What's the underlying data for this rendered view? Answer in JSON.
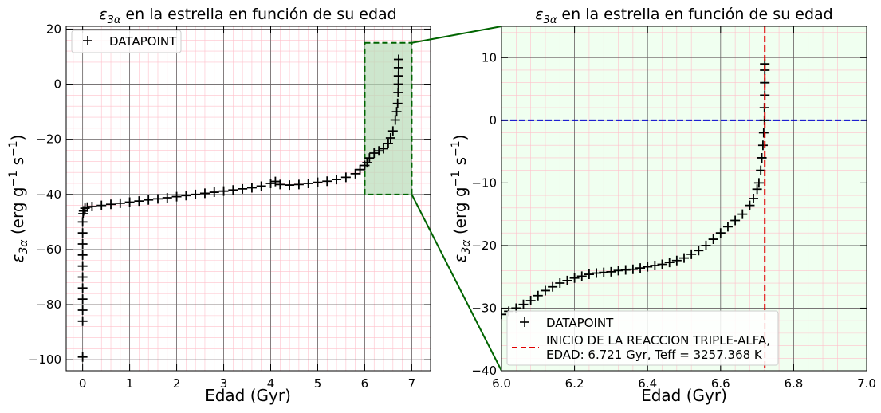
{
  "chart_data": [
    {
      "type": "scatter",
      "title_prefix": "ε",
      "title_sub": "3α",
      "title_rest": " en la estrella en función de su edad",
      "xlabel": "Edad (Gyr)",
      "ylabel_prefix": "ε",
      "ylabel_sub": "3α",
      "ylabel_rest": " (erg g",
      "ylabel_sup1": "−1",
      "ylabel_mid": " s",
      "ylabel_sup2": "−1",
      "ylabel_end": ")",
      "xlim": [
        -0.35,
        7.4
      ],
      "ylim": [
        -104,
        21
      ],
      "xticks": [
        0,
        1,
        2,
        3,
        4,
        5,
        6,
        7
      ],
      "xtick_labels": [
        "0",
        "1",
        "2",
        "3",
        "4",
        "5",
        "6",
        "7"
      ],
      "yticks": [
        -100,
        -80,
        -60,
        -40,
        -20,
        0,
        20
      ],
      "ytick_labels": [
        "−100",
        "−80",
        "−60",
        "−40",
        "−20",
        "0",
        "20"
      ],
      "grid": true,
      "legend": {
        "placement": "top-left",
        "entries": [
          "DATAPOINT"
        ]
      },
      "zoom_box": {
        "x": [
          6.0,
          7.0
        ],
        "y": [
          -40,
          15
        ],
        "color": "#006400"
      },
      "series": [
        {
          "name": "DATAPOINT",
          "marker": "+",
          "points": [
            [
              0.0,
              -99
            ],
            [
              0.0,
              -86
            ],
            [
              0.0,
              -82
            ],
            [
              0.0,
              -78
            ],
            [
              0.0,
              -74
            ],
            [
              0.0,
              -70
            ],
            [
              0.0,
              -66
            ],
            [
              0.0,
              -62
            ],
            [
              0.0,
              -58
            ],
            [
              0.0,
              -54
            ],
            [
              0.0,
              -50
            ],
            [
              0.01,
              -47
            ],
            [
              0.02,
              -46
            ],
            [
              0.05,
              -45
            ],
            [
              0.1,
              -44.6
            ],
            [
              0.2,
              -44.4
            ],
            [
              0.4,
              -44
            ],
            [
              0.6,
              -43.6
            ],
            [
              0.8,
              -43.2
            ],
            [
              1.0,
              -42.8
            ],
            [
              1.2,
              -42.4
            ],
            [
              1.4,
              -42
            ],
            [
              1.6,
              -41.6
            ],
            [
              1.8,
              -41.2
            ],
            [
              2.0,
              -40.8
            ],
            [
              2.2,
              -40.4
            ],
            [
              2.4,
              -40
            ],
            [
              2.6,
              -39.6
            ],
            [
              2.8,
              -39.2
            ],
            [
              3.0,
              -38.8
            ],
            [
              3.2,
              -38.4
            ],
            [
              3.4,
              -38
            ],
            [
              3.6,
              -37.6
            ],
            [
              3.8,
              -37
            ],
            [
              4.0,
              -36
            ],
            [
              4.1,
              -35.3
            ],
            [
              4.2,
              -36.4
            ],
            [
              4.4,
              -36.6
            ],
            [
              4.6,
              -36.4
            ],
            [
              4.8,
              -36
            ],
            [
              5.0,
              -35.6
            ],
            [
              5.2,
              -35.2
            ],
            [
              5.4,
              -34.6
            ],
            [
              5.6,
              -33.8
            ],
            [
              5.8,
              -32.5
            ],
            [
              5.9,
              -31
            ],
            [
              6.0,
              -29.5
            ],
            [
              6.05,
              -28.5
            ],
            [
              6.1,
              -26.8
            ],
            [
              6.2,
              -25
            ],
            [
              6.3,
              -24.2
            ],
            [
              6.4,
              -23.4
            ],
            [
              6.5,
              -21.5
            ],
            [
              6.55,
              -19.5
            ],
            [
              6.6,
              -17
            ],
            [
              6.65,
              -13
            ],
            [
              6.68,
              -10
            ],
            [
              6.7,
              -7
            ],
            [
              6.71,
              -3
            ],
            [
              6.715,
              0
            ],
            [
              6.718,
              3
            ],
            [
              6.72,
              6
            ],
            [
              6.721,
              9
            ]
          ]
        }
      ]
    },
    {
      "type": "scatter",
      "title_prefix": "ε",
      "title_sub": "3α",
      "title_rest": " en la estrella en función de su edad",
      "xlabel": "Edad (Gyr)",
      "ylabel_prefix": "ε",
      "ylabel_sub": "3α",
      "ylabel_rest": " (erg g",
      "ylabel_sup1": "−1",
      "ylabel_mid": " s",
      "ylabel_sup2": "−1",
      "ylabel_end": ")",
      "xlim": [
        6.0,
        7.0
      ],
      "ylim": [
        -40,
        15
      ],
      "xticks": [
        6.0,
        6.2,
        6.4,
        6.6,
        6.8,
        7.0
      ],
      "xtick_labels": [
        "6.0",
        "6.2",
        "6.4",
        "6.6",
        "6.8",
        "7.0"
      ],
      "yticks": [
        -40,
        -30,
        -20,
        -10,
        0,
        10
      ],
      "ytick_labels": [
        "−40",
        "−30",
        "−20",
        "−10",
        "0",
        "10"
      ],
      "grid": true,
      "background": "#f0fff0",
      "hline": {
        "y": 0,
        "color": "#0000cd",
        "style": "dashed"
      },
      "vline": {
        "x": 6.721,
        "color": "#e00000",
        "style": "dashed"
      },
      "legend": {
        "placement": "bottom-left",
        "entries": [
          "DATAPOINT",
          "INICIO DE LA REACCION TRIPLE-ALFA,",
          "EDAD: 6.721 Gyr, Teff = 3257.368 K"
        ]
      },
      "series": [
        {
          "name": "DATAPOINT",
          "marker": "+",
          "points": [
            [
              6.0,
              -31
            ],
            [
              6.02,
              -30.5
            ],
            [
              6.04,
              -30
            ],
            [
              6.06,
              -29.4
            ],
            [
              6.08,
              -28.8
            ],
            [
              6.1,
              -28
            ],
            [
              6.12,
              -27.2
            ],
            [
              6.14,
              -26.6
            ],
            [
              6.16,
              -26
            ],
            [
              6.18,
              -25.6
            ],
            [
              6.2,
              -25.2
            ],
            [
              6.22,
              -24.9
            ],
            [
              6.24,
              -24.6
            ],
            [
              6.26,
              -24.4
            ],
            [
              6.28,
              -24.3
            ],
            [
              6.3,
              -24.2
            ],
            [
              6.32,
              -24
            ],
            [
              6.34,
              -23.9
            ],
            [
              6.36,
              -23.8
            ],
            [
              6.38,
              -23.6
            ],
            [
              6.4,
              -23.4
            ],
            [
              6.42,
              -23.2
            ],
            [
              6.44,
              -23
            ],
            [
              6.46,
              -22.7
            ],
            [
              6.48,
              -22.4
            ],
            [
              6.5,
              -22
            ],
            [
              6.52,
              -21.4
            ],
            [
              6.54,
              -20.8
            ],
            [
              6.56,
              -20
            ],
            [
              6.58,
              -19
            ],
            [
              6.6,
              -18
            ],
            [
              6.62,
              -17
            ],
            [
              6.64,
              -16
            ],
            [
              6.66,
              -15
            ],
            [
              6.68,
              -13.6
            ],
            [
              6.69,
              -12.5
            ],
            [
              6.7,
              -11
            ],
            [
              6.705,
              -10
            ],
            [
              6.71,
              -8
            ],
            [
              6.713,
              -6
            ],
            [
              6.716,
              -4
            ],
            [
              6.718,
              -2
            ],
            [
              6.72,
              0
            ],
            [
              6.72,
              2
            ],
            [
              6.721,
              4
            ],
            [
              6.721,
              6
            ],
            [
              6.721,
              8
            ],
            [
              6.721,
              9
            ]
          ]
        }
      ]
    }
  ]
}
